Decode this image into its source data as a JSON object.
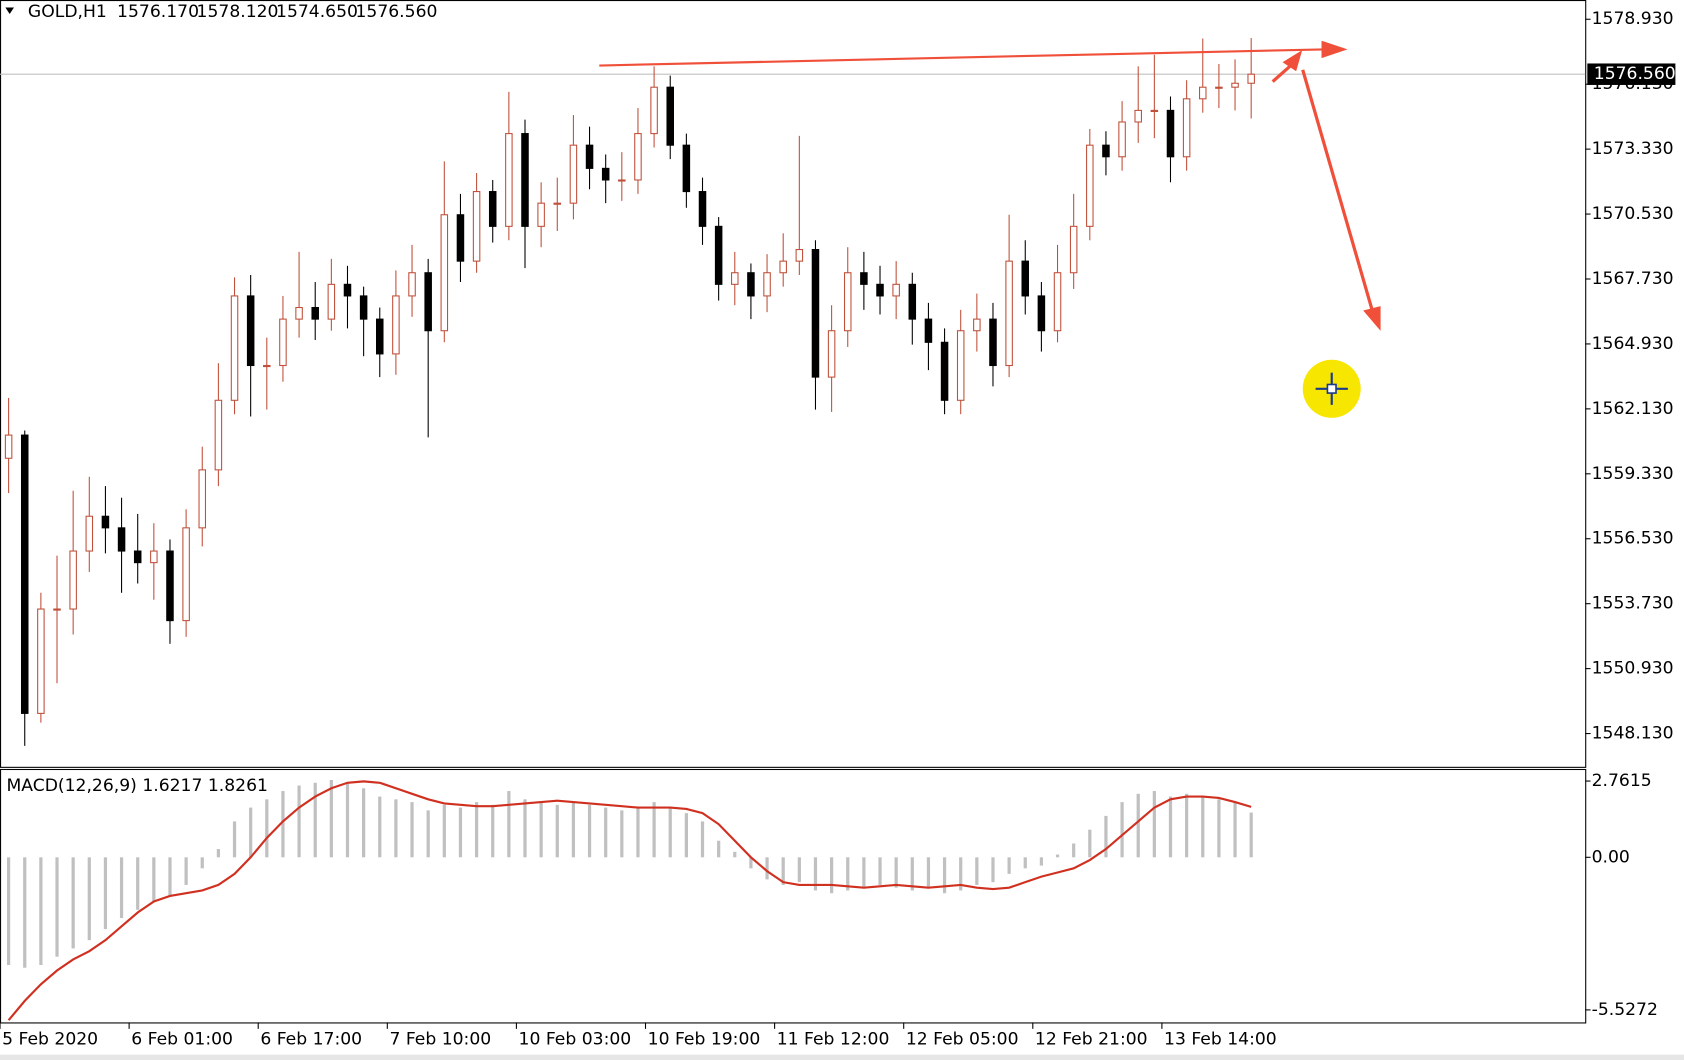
{
  "chart_data": {
    "type": "candlestick",
    "symbol": "GOLD,H1",
    "ohlc_labels": [
      "1576.170",
      "1578.120",
      "1574.650",
      "1576.560"
    ],
    "up_color": "#c0503a",
    "down_color": "#000000",
    "ylim": [
      1546.65,
      1579.76
    ],
    "yticks": [
      {
        "value": 1578.93,
        "label": "1578.930"
      },
      {
        "value": 1576.13,
        "label": "1576.130"
      },
      {
        "value": 1573.33,
        "label": "1573.330"
      },
      {
        "value": 1570.53,
        "label": "1570.530"
      },
      {
        "value": 1567.73,
        "label": "1567.730"
      },
      {
        "value": 1564.93,
        "label": "1564.930"
      },
      {
        "value": 1562.13,
        "label": "1562.130"
      },
      {
        "value": 1559.33,
        "label": "1559.330"
      },
      {
        "value": 1556.53,
        "label": "1556.530"
      },
      {
        "value": 1553.73,
        "label": "1553.730"
      },
      {
        "value": 1550.93,
        "label": "1550.930"
      },
      {
        "value": 1548.13,
        "label": "1548.130"
      }
    ],
    "current_price": {
      "value": 1576.56,
      "label": "1576.560"
    },
    "categories": [
      "5 Feb 2020",
      null,
      null,
      null,
      null,
      null,
      null,
      null,
      "6 Feb 01:00",
      null,
      null,
      null,
      null,
      null,
      null,
      null,
      "6 Feb 17:00",
      null,
      null,
      null,
      null,
      null,
      null,
      null,
      "7 Feb 10:00",
      null,
      null,
      null,
      null,
      null,
      null,
      null,
      "10 Feb 03:00",
      null,
      null,
      null,
      null,
      null,
      null,
      null,
      "10 Feb 19:00",
      null,
      null,
      null,
      null,
      null,
      null,
      null,
      "11 Feb 12:00",
      null,
      null,
      null,
      null,
      null,
      null,
      null,
      "12 Feb 05:00",
      null,
      null,
      null,
      null,
      null,
      null,
      null,
      "12 Feb 21:00",
      null,
      null,
      null,
      null,
      null,
      null,
      null,
      "13 Feb 14:00",
      null,
      null,
      null,
      null,
      null
    ],
    "candles": [
      [
        1560.0,
        1562.6,
        1558.5,
        1561.0
      ],
      [
        1561.0,
        1561.2,
        1547.6,
        1549.0
      ],
      [
        1549.0,
        1554.2,
        1548.6,
        1553.5
      ],
      [
        1553.5,
        1555.8,
        1550.3,
        1553.5
      ],
      [
        1553.5,
        1558.6,
        1552.4,
        1556.0
      ],
      [
        1556.0,
        1559.2,
        1555.1,
        1557.5
      ],
      [
        1557.5,
        1558.8,
        1555.9,
        1557.0
      ],
      [
        1557.0,
        1558.3,
        1554.2,
        1556.0
      ],
      [
        1556.0,
        1557.6,
        1554.6,
        1555.5
      ],
      [
        1555.5,
        1557.2,
        1553.9,
        1556.0
      ],
      [
        1556.0,
        1556.5,
        1552.0,
        1553.0
      ],
      [
        1553.0,
        1557.8,
        1552.3,
        1557.0
      ],
      [
        1557.0,
        1560.5,
        1556.2,
        1559.5
      ],
      [
        1559.5,
        1564.1,
        1558.8,
        1562.5
      ],
      [
        1562.5,
        1567.8,
        1561.9,
        1567.0
      ],
      [
        1567.0,
        1567.9,
        1561.8,
        1564.0
      ],
      [
        1564.0,
        1565.2,
        1562.1,
        1564.0
      ],
      [
        1564.0,
        1567.0,
        1563.3,
        1566.0
      ],
      [
        1566.0,
        1568.9,
        1565.2,
        1566.5
      ],
      [
        1566.5,
        1567.6,
        1565.1,
        1566.0
      ],
      [
        1566.0,
        1568.6,
        1565.5,
        1567.5
      ],
      [
        1567.5,
        1568.3,
        1565.6,
        1567.0
      ],
      [
        1567.0,
        1567.4,
        1564.4,
        1566.0
      ],
      [
        1566.0,
        1566.5,
        1563.5,
        1564.5
      ],
      [
        1564.5,
        1568.1,
        1563.6,
        1567.0
      ],
      [
        1567.0,
        1569.2,
        1566.1,
        1568.0
      ],
      [
        1568.0,
        1568.6,
        1560.9,
        1565.5
      ],
      [
        1565.5,
        1572.8,
        1565.0,
        1570.5
      ],
      [
        1570.5,
        1571.4,
        1567.6,
        1568.5
      ],
      [
        1568.5,
        1572.3,
        1568.0,
        1571.5
      ],
      [
        1571.5,
        1572.0,
        1569.3,
        1570.0
      ],
      [
        1570.0,
        1575.8,
        1569.4,
        1574.0
      ],
      [
        1574.0,
        1574.6,
        1568.2,
        1570.0
      ],
      [
        1570.0,
        1571.9,
        1569.1,
        1571.0
      ],
      [
        1571.0,
        1572.1,
        1569.8,
        1571.0
      ],
      [
        1571.0,
        1574.8,
        1570.3,
        1573.5
      ],
      [
        1573.5,
        1574.3,
        1571.6,
        1572.5
      ],
      [
        1572.5,
        1573.1,
        1571.0,
        1572.0
      ],
      [
        1572.0,
        1573.2,
        1571.1,
        1572.0
      ],
      [
        1572.0,
        1575.1,
        1571.4,
        1574.0
      ],
      [
        1574.0,
        1576.9,
        1573.4,
        1576.0
      ],
      [
        1576.0,
        1576.5,
        1572.9,
        1573.5
      ],
      [
        1573.5,
        1574.0,
        1570.8,
        1571.5
      ],
      [
        1571.5,
        1572.1,
        1569.2,
        1570.0
      ],
      [
        1570.0,
        1570.4,
        1566.8,
        1567.5
      ],
      [
        1567.5,
        1568.9,
        1566.6,
        1568.0
      ],
      [
        1568.0,
        1568.4,
        1566.0,
        1567.0
      ],
      [
        1567.0,
        1568.8,
        1566.3,
        1568.0
      ],
      [
        1568.0,
        1569.7,
        1567.4,
        1568.5
      ],
      [
        1568.5,
        1573.9,
        1567.9,
        1569.0
      ],
      [
        1569.0,
        1569.4,
        1562.1,
        1563.5
      ],
      [
        1563.5,
        1566.6,
        1562.0,
        1565.5
      ],
      [
        1565.5,
        1569.1,
        1564.8,
        1568.0
      ],
      [
        1568.0,
        1568.9,
        1566.4,
        1567.5
      ],
      [
        1567.5,
        1568.3,
        1566.2,
        1567.0
      ],
      [
        1567.0,
        1568.5,
        1566.0,
        1567.5
      ],
      [
        1567.5,
        1568.0,
        1564.9,
        1566.0
      ],
      [
        1566.0,
        1566.7,
        1563.8,
        1565.0
      ],
      [
        1565.0,
        1565.6,
        1561.9,
        1562.5
      ],
      [
        1562.5,
        1566.4,
        1561.9,
        1565.5
      ],
      [
        1565.5,
        1567.1,
        1564.6,
        1566.0
      ],
      [
        1566.0,
        1566.7,
        1563.1,
        1564.0
      ],
      [
        1564.0,
        1570.5,
        1563.5,
        1568.5
      ],
      [
        1568.5,
        1569.4,
        1566.2,
        1567.0
      ],
      [
        1567.0,
        1567.6,
        1564.6,
        1565.5
      ],
      [
        1565.5,
        1569.2,
        1565.0,
        1568.0
      ],
      [
        1568.0,
        1571.4,
        1567.3,
        1570.0
      ],
      [
        1570.0,
        1574.2,
        1569.4,
        1573.5
      ],
      [
        1573.5,
        1574.1,
        1572.2,
        1573.0
      ],
      [
        1573.0,
        1575.4,
        1572.4,
        1574.5
      ],
      [
        1574.5,
        1576.9,
        1573.6,
        1575.0
      ],
      [
        1575.0,
        1577.4,
        1573.8,
        1575.0
      ],
      [
        1575.0,
        1575.6,
        1571.9,
        1573.0
      ],
      [
        1573.0,
        1576.3,
        1572.4,
        1575.5
      ],
      [
        1575.5,
        1578.1,
        1574.9,
        1576.0
      ],
      [
        1576.0,
        1577.0,
        1575.1,
        1576.0
      ],
      [
        1576.0,
        1577.2,
        1575.0,
        1576.17
      ],
      [
        1576.17,
        1578.12,
        1574.65,
        1576.56
      ]
    ],
    "macd": {
      "label": "MACD(12,26,9) 1.6217 1.8261",
      "ylim": [
        -5.98,
        3.2
      ],
      "yticks": [
        2.7615,
        {
          "value": 0,
          "label": "0.00"
        },
        -5.5272
      ],
      "histogram_color": "#c0c0c0",
      "signal_color": "#d03020",
      "histogram": [
        -3.9,
        -4.0,
        -3.9,
        -3.6,
        -3.3,
        -3.0,
        -2.6,
        -2.2,
        -1.9,
        -1.6,
        -1.4,
        -1.0,
        -0.4,
        0.3,
        1.3,
        1.8,
        2.1,
        2.4,
        2.6,
        2.7,
        2.8,
        2.7,
        2.5,
        2.2,
        2.1,
        2.0,
        1.7,
        1.9,
        1.8,
        2.0,
        1.9,
        2.4,
        2.1,
        2.0,
        1.9,
        2.0,
        1.9,
        1.8,
        1.7,
        1.8,
        2.0,
        1.8,
        1.6,
        1.3,
        0.6,
        0.2,
        -0.4,
        -0.8,
        -1.0,
        -0.9,
        -1.2,
        -1.3,
        -1.2,
        -1.1,
        -1.0,
        -1.1,
        -1.2,
        -1.1,
        -1.3,
        -1.2,
        -1.0,
        -0.9,
        -0.6,
        -0.4,
        -0.3,
        0.1,
        0.5,
        1.0,
        1.5,
        2.0,
        2.3,
        2.4,
        2.2,
        2.3,
        2.2,
        2.1,
        2.0,
        1.6217
      ],
      "signal": [
        -5.9,
        -5.2,
        -4.6,
        -4.1,
        -3.7,
        -3.4,
        -3.0,
        -2.5,
        -2.0,
        -1.6,
        -1.4,
        -1.3,
        -1.2,
        -1.0,
        -0.6,
        0.0,
        0.7,
        1.3,
        1.8,
        2.2,
        2.5,
        2.7,
        2.75,
        2.7,
        2.5,
        2.3,
        2.1,
        1.95,
        1.9,
        1.85,
        1.85,
        1.9,
        1.95,
        2.0,
        2.05,
        2.0,
        1.95,
        1.9,
        1.85,
        1.8,
        1.8,
        1.8,
        1.75,
        1.6,
        1.2,
        0.6,
        0.0,
        -0.5,
        -0.9,
        -1.0,
        -1.0,
        -1.0,
        -1.05,
        -1.1,
        -1.05,
        -1.0,
        -1.05,
        -1.1,
        -1.05,
        -1.0,
        -1.1,
        -1.15,
        -1.1,
        -0.9,
        -0.7,
        -0.55,
        -0.4,
        -0.1,
        0.3,
        0.8,
        1.3,
        1.8,
        2.1,
        2.2,
        2.2,
        2.15,
        2.0,
        1.8261
      ]
    }
  }
}
